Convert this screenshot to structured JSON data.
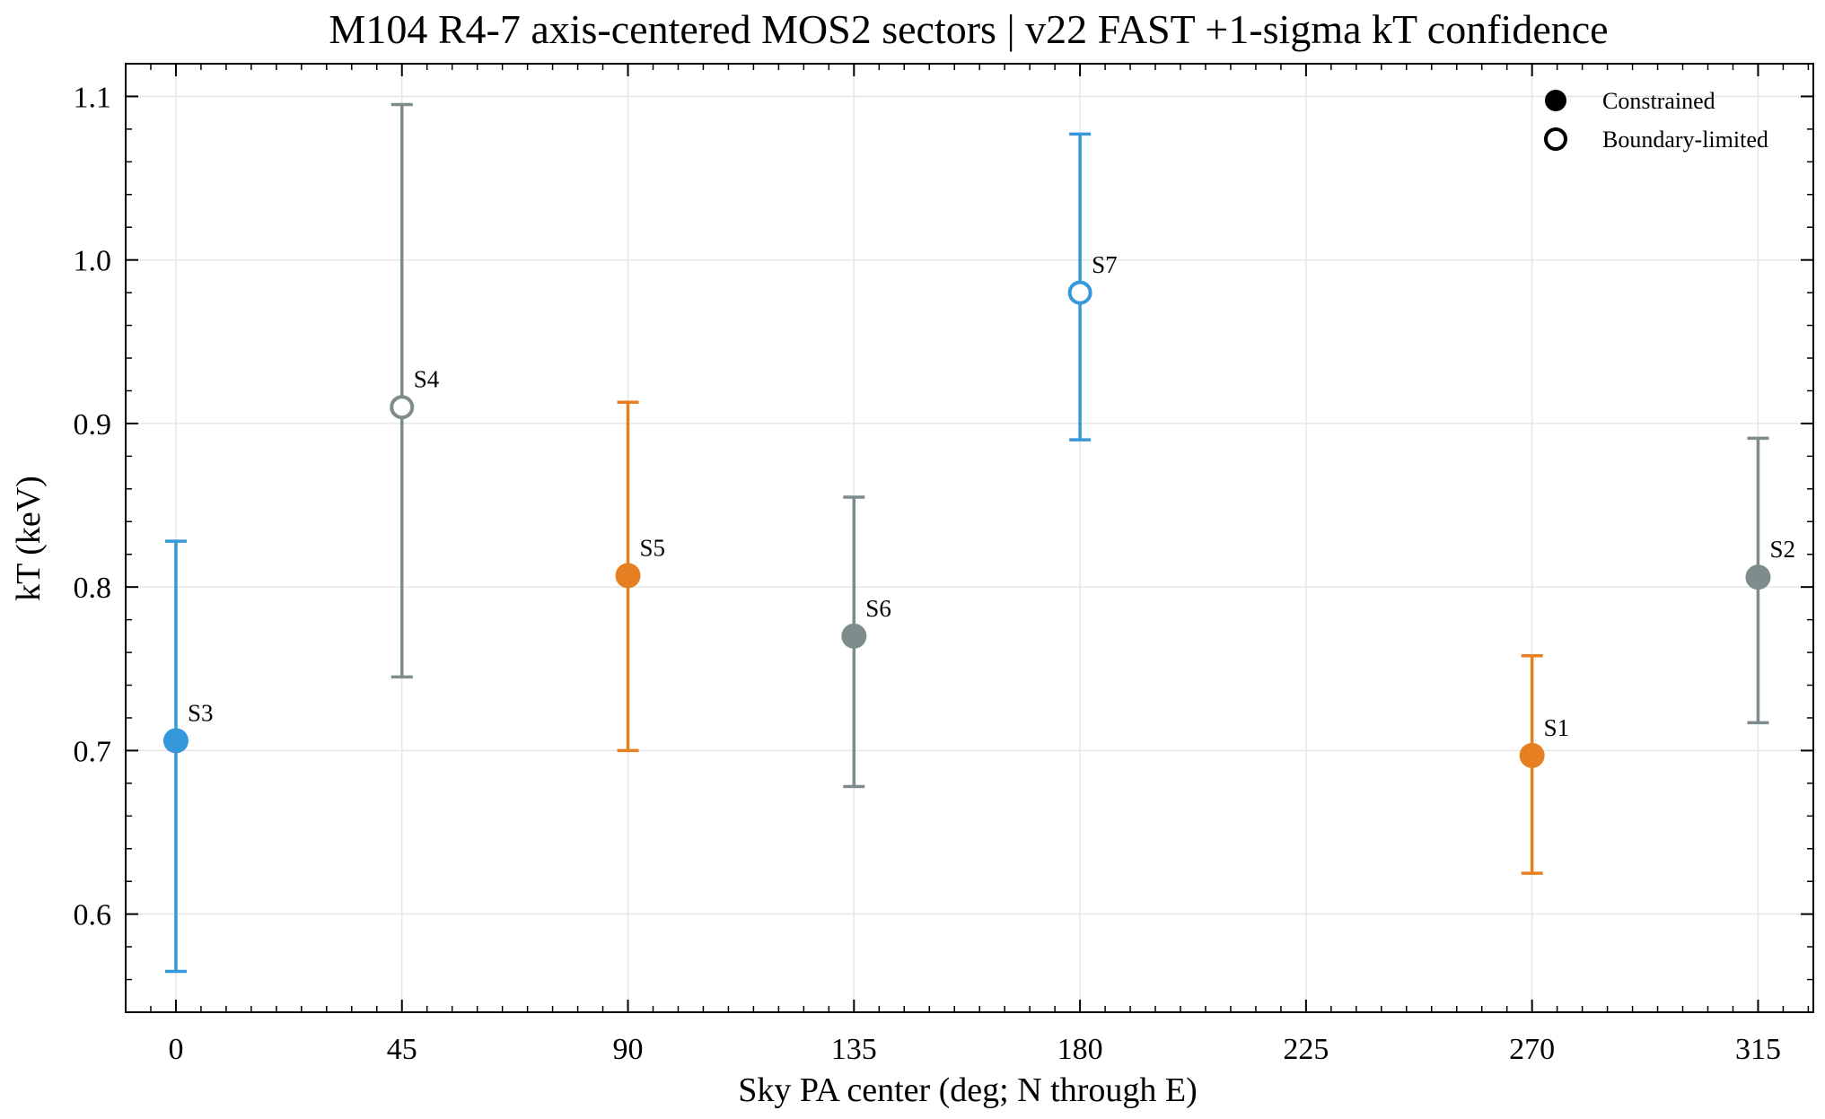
{
  "chart_data": {
    "type": "scatter",
    "title": "M104 R4-7 axis-centered MOS2 sectors | v22 FAST +1-sigma kT confidence",
    "xlabel": "Sky PA center (deg; N through E)",
    "ylabel": "kT (keV)",
    "xlim": [
      -10,
      326
    ],
    "ylim": [
      0.54,
      1.12
    ],
    "xticks": [
      0,
      45,
      90,
      135,
      180,
      225,
      270,
      315
    ],
    "yticks": [
      0.6,
      0.7,
      0.8,
      0.9,
      1.0,
      1.1
    ],
    "ytick_labels": [
      "0.6",
      "0.7",
      "0.8",
      "0.9",
      "1.0",
      "1.1"
    ],
    "grid": true,
    "legend_position": "top-right",
    "legend": [
      {
        "label": "Constrained",
        "marker": "filled"
      },
      {
        "label": "Boundary-limited",
        "marker": "open"
      }
    ],
    "colors": {
      "blue": "#3498db",
      "gray": "#7f8c8d",
      "orange": "#e67e22"
    },
    "points": [
      {
        "label": "S3",
        "x": 0,
        "y": 0.706,
        "low": 0.565,
        "high": 0.828,
        "color": "#3498db",
        "constrained": true
      },
      {
        "label": "S4",
        "x": 45,
        "y": 0.91,
        "low": 0.745,
        "high": 1.095,
        "color": "#7f8c8d",
        "constrained": false
      },
      {
        "label": "S5",
        "x": 90,
        "y": 0.807,
        "low": 0.7,
        "high": 0.913,
        "color": "#e67e22",
        "constrained": true
      },
      {
        "label": "S6",
        "x": 135,
        "y": 0.77,
        "low": 0.678,
        "high": 0.855,
        "color": "#7f8c8d",
        "constrained": true
      },
      {
        "label": "S7",
        "x": 180,
        "y": 0.98,
        "low": 0.89,
        "high": 1.077,
        "color": "#3498db",
        "constrained": false
      },
      {
        "label": "S1",
        "x": 270,
        "y": 0.697,
        "low": 0.625,
        "high": 0.758,
        "color": "#e67e22",
        "constrained": true
      },
      {
        "label": "S2",
        "x": 315,
        "y": 0.806,
        "low": 0.717,
        "high": 0.891,
        "color": "#7f8c8d",
        "constrained": true
      }
    ]
  }
}
